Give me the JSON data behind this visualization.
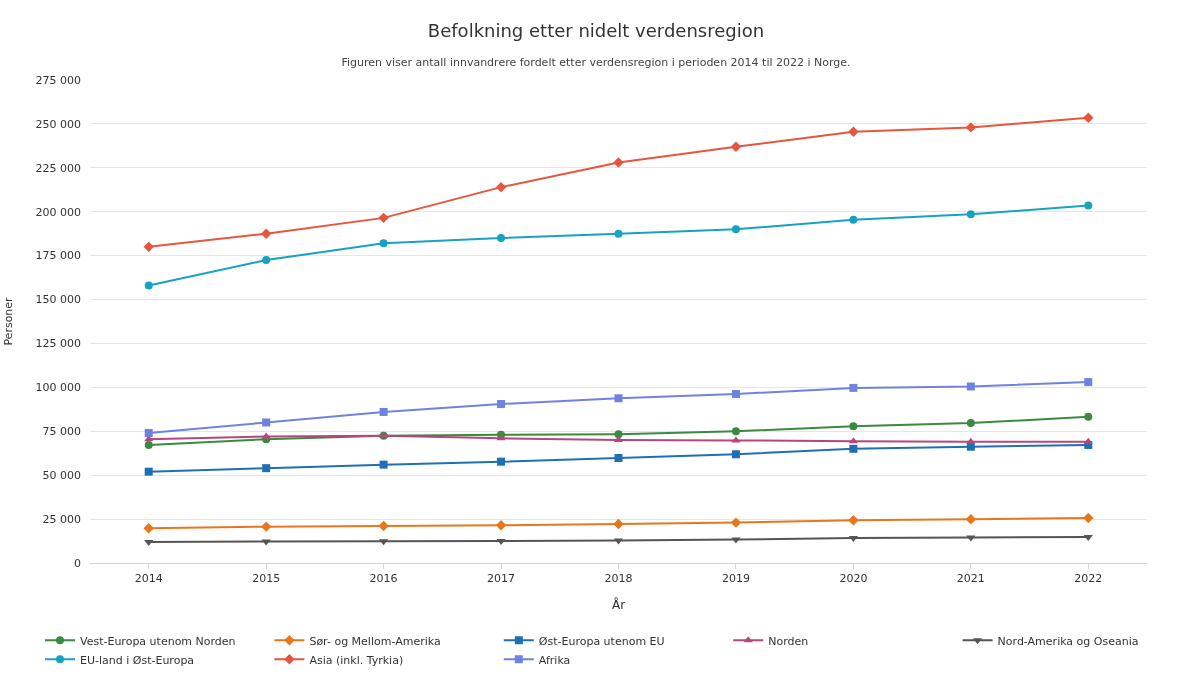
{
  "chart_data": {
    "type": "line",
    "title": "Befolkning etter nidelt verdensregion",
    "subtitle": "Figuren viser antall innvandrere fordelt etter verdensregion i perioden 2014 til 2022 i Norge.",
    "xlabel": "År",
    "ylabel": "Personer",
    "categories": [
      "2014",
      "2015",
      "2016",
      "2017",
      "2018",
      "2019",
      "2020",
      "2021",
      "2022"
    ],
    "ylim": [
      0,
      275000
    ],
    "yticks": [
      {
        "value": 0,
        "label": "0"
      },
      {
        "value": 25000,
        "label": "25 000"
      },
      {
        "value": 50000,
        "label": "50 000"
      },
      {
        "value": 75000,
        "label": "75 000"
      },
      {
        "value": 100000,
        "label": "100 000"
      },
      {
        "value": 125000,
        "label": "125 000"
      },
      {
        "value": 150000,
        "label": "150 000"
      },
      {
        "value": 175000,
        "label": "175 000"
      },
      {
        "value": 200000,
        "label": "200 000"
      },
      {
        "value": 225000,
        "label": "225 000"
      },
      {
        "value": 250000,
        "label": "250 000"
      },
      {
        "value": 275000,
        "label": "275 000"
      }
    ],
    "grid": "y",
    "legend": "bottom",
    "line_style": "solid",
    "series": [
      {
        "name": "Vest-Europa utenom Norden",
        "color": "#3a8a3f",
        "marker": "circle",
        "values": [
          67200,
          70500,
          72500,
          73000,
          73300,
          75000,
          77800,
          79700,
          83200
        ]
      },
      {
        "name": "Sør- og Mellom-Amerika",
        "color": "#e8761c",
        "marker": "diamond",
        "values": [
          19800,
          20700,
          21100,
          21500,
          22200,
          23000,
          24300,
          24900,
          25600
        ]
      },
      {
        "name": "Øst-Europa utenom EU",
        "color": "#1f6fb5",
        "marker": "square",
        "values": [
          52000,
          54000,
          56000,
          57700,
          59800,
          61900,
          65000,
          66200,
          67200
        ]
      },
      {
        "name": "Norden",
        "color": "#b5487b",
        "marker": "triangle",
        "values": [
          70500,
          72000,
          72500,
          71000,
          70000,
          69800,
          69300,
          69000,
          69000
        ]
      },
      {
        "name": "Nord-Amerika og Oseania",
        "color": "#555555",
        "marker": "triangle-down",
        "values": [
          12000,
          12200,
          12400,
          12500,
          12800,
          13400,
          14200,
          14500,
          14800
        ]
      },
      {
        "name": "EU-land i Øst-Europa",
        "color": "#17a2c0",
        "marker": "circle",
        "values": [
          158000,
          172500,
          182000,
          185000,
          187500,
          190000,
          195500,
          198500,
          203500
        ]
      },
      {
        "name": "Asia (inkl. Tyrkia)",
        "color": "#e8553f",
        "marker": "diamond",
        "values": [
          180000,
          187500,
          196500,
          214000,
          228000,
          237000,
          245500,
          248000,
          253500
        ]
      },
      {
        "name": "Afrika",
        "color": "#6f82e0",
        "marker": "square",
        "values": [
          74000,
          80000,
          86000,
          90500,
          93800,
          96200,
          99700,
          100500,
          103000
        ]
      }
    ]
  }
}
